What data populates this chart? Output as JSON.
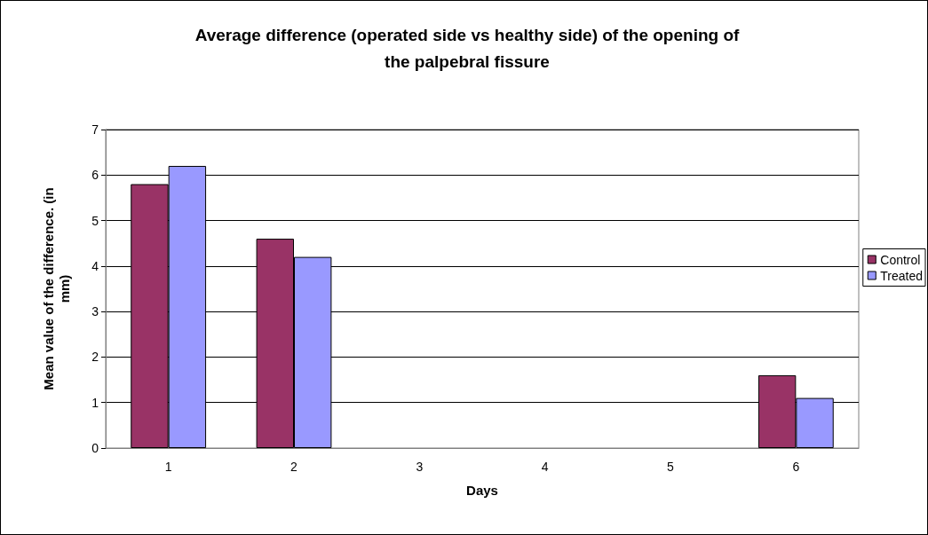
{
  "chart_data": {
    "type": "bar",
    "title": "Average difference (operated side vs healthy side) of the opening of\nthe palpebral fissure",
    "xlabel": "Days",
    "ylabel": "Mean value of the difference. (in\nmm)",
    "categories": [
      "1",
      "2",
      "3",
      "4",
      "5",
      "6"
    ],
    "series": [
      {
        "name": "Control",
        "color": "#993366",
        "values": [
          5.8,
          4.6,
          null,
          null,
          null,
          1.6
        ]
      },
      {
        "name": "Treated",
        "color": "#9999ff",
        "values": [
          6.2,
          4.2,
          null,
          null,
          null,
          1.1
        ]
      }
    ],
    "ylim": [
      0,
      7
    ],
    "yticks": [
      0,
      1,
      2,
      3,
      4,
      5,
      6,
      7
    ],
    "grid": "y",
    "legend": "right"
  }
}
